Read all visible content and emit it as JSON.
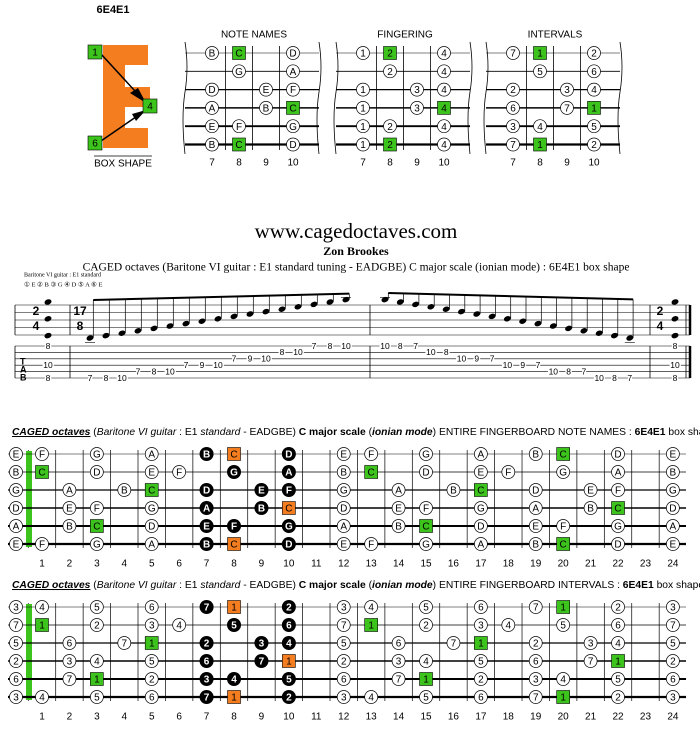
{
  "box": {
    "title": "6E4E1",
    "label": "BOX SHAPE",
    "markers": [
      1,
      4,
      6
    ]
  },
  "mini": {
    "titles": [
      "NOTE NAMES",
      "FINGERING",
      "INTERVALS"
    ],
    "frets": [
      7,
      8,
      9,
      10
    ],
    "strings": [
      {
        "frets": [
          7,
          8,
          10
        ],
        "notes": [
          "B",
          "C",
          "D"
        ],
        "fingers": [
          1,
          2,
          4
        ],
        "intervals": [
          7,
          1,
          2
        ],
        "root": 1
      },
      {
        "frets": [
          8,
          10
        ],
        "notes": [
          "G",
          "A"
        ],
        "fingers": [
          2,
          4
        ],
        "intervals": [
          5,
          6
        ],
        "root": null
      },
      {
        "frets": [
          7,
          9,
          10
        ],
        "notes": [
          "D",
          "E",
          "F"
        ],
        "fingers": [
          1,
          3,
          4
        ],
        "intervals": [
          2,
          3,
          4
        ],
        "root": null
      },
      {
        "frets": [
          7,
          9,
          10
        ],
        "notes": [
          "A",
          "B",
          "C"
        ],
        "fingers": [
          1,
          3,
          4
        ],
        "intervals": [
          6,
          7,
          1
        ],
        "root": 2
      },
      {
        "frets": [
          7,
          8,
          10
        ],
        "notes": [
          "E",
          "F",
          "G"
        ],
        "fingers": [
          1,
          2,
          4
        ],
        "intervals": [
          3,
          4,
          5
        ],
        "root": null
      },
      {
        "frets": [
          7,
          8,
          10
        ],
        "notes": [
          "B",
          "C",
          "D"
        ],
        "fingers": [
          1,
          2,
          4
        ],
        "intervals": [
          7,
          1,
          2
        ],
        "root": 1
      }
    ]
  },
  "header": {
    "site": "www.cagedoctaves.com",
    "author": "Zon Brookes",
    "subtitle": "CAGED octaves (Baritone VI guitar : E1 standard tuning - EADGBE) C major scale (ionian mode) : 6E4E1 box shape"
  },
  "sheet": {
    "instrument": "Baritone VI guitar : E1 standard",
    "tuning": "① E ② B ③ G ④ D ⑤ A ⑥ E",
    "times": [
      {
        "num": 2,
        "den": 4
      },
      {
        "num": 17,
        "den": 8
      },
      {
        "num": 2,
        "den": 4
      }
    ],
    "chord_start": {
      "strings": [
        1,
        4,
        6
      ],
      "frets": [
        8,
        10,
        8
      ]
    },
    "run": {
      "strings": [
        6,
        6,
        6,
        5,
        5,
        5,
        4,
        4,
        4,
        3,
        3,
        3,
        2,
        2,
        1,
        1,
        1,
        1,
        1,
        1,
        2,
        2,
        3,
        3,
        3,
        4,
        4,
        4,
        5,
        5,
        5,
        6,
        6,
        6
      ],
      "frets": [
        7,
        8,
        10,
        7,
        8,
        10,
        7,
        9,
        10,
        7,
        9,
        10,
        8,
        10,
        7,
        8,
        10,
        10,
        8,
        7,
        10,
        8,
        10,
        9,
        7,
        10,
        9,
        7,
        10,
        8,
        7,
        10,
        8,
        7
      ]
    },
    "chord_end": {
      "strings": [
        1,
        4,
        6
      ],
      "frets": [
        8,
        10,
        8
      ]
    }
  },
  "fretboard": {
    "frets": [
      1,
      2,
      3,
      4,
      5,
      6,
      7,
      8,
      9,
      10,
      11,
      12,
      13,
      14,
      15,
      16,
      17,
      18,
      19,
      20,
      21,
      22,
      23,
      24
    ],
    "title_notes": [
      {
        "text": "CAGED octaves",
        "style": "biu"
      },
      {
        "text": " (",
        "style": "n"
      },
      {
        "text": "Baritone VI guitar",
        "style": "i"
      },
      {
        "text": " : E1 ",
        "style": "n"
      },
      {
        "text": "standard",
        "style": "i"
      },
      {
        "text": " - EADGBE) ",
        "style": "n"
      },
      {
        "text": "C major scale",
        "style": "b"
      },
      {
        "text": " (",
        "style": "n"
      },
      {
        "text": "ionian mode",
        "style": "bi"
      },
      {
        "text": ") ENTIRE FINGERBOARD NOTE NAMES : ",
        "style": "n"
      },
      {
        "text": "6E4E1",
        "style": "b"
      },
      {
        "text": " box shape",
        "style": "n"
      }
    ],
    "title_intervals": [
      {
        "text": "CAGED octaves",
        "style": "biu"
      },
      {
        "text": " (",
        "style": "n"
      },
      {
        "text": "Baritone VI guitar",
        "style": "i"
      },
      {
        "text": " : E1 ",
        "style": "n"
      },
      {
        "text": "standard",
        "style": "i"
      },
      {
        "text": " - EADGBE) ",
        "style": "n"
      },
      {
        "text": "C major scale",
        "style": "b"
      },
      {
        "text": " (",
        "style": "n"
      },
      {
        "text": "ionian mode",
        "style": "bi"
      },
      {
        "text": ") ENTIRE FINGERBOARD INTERVALS : ",
        "style": "n"
      },
      {
        "text": "6E4E1",
        "style": "b"
      },
      {
        "text": " box shape",
        "style": "n"
      }
    ],
    "strings": [
      {
        "frets": [
          0,
          1,
          3,
          5,
          7,
          8,
          10,
          12,
          13,
          15,
          17,
          19,
          20,
          22,
          24
        ],
        "notes": [
          "E",
          "F",
          "G",
          "A",
          "B",
          "C",
          "D",
          "E",
          "F",
          "G",
          "A",
          "B",
          "C",
          "D",
          "E"
        ],
        "intervals": [
          3,
          4,
          5,
          6,
          7,
          1,
          2,
          3,
          4,
          5,
          6,
          7,
          1,
          2,
          3
        ],
        "styles": "wwwwkokwwwwwgww"
      },
      {
        "frets": [
          0,
          1,
          3,
          5,
          6,
          8,
          10,
          12,
          13,
          15,
          17,
          18,
          20,
          22,
          24
        ],
        "notes": [
          "B",
          "C",
          "D",
          "E",
          "F",
          "G",
          "A",
          "B",
          "C",
          "D",
          "E",
          "F",
          "G",
          "A",
          "B"
        ],
        "intervals": [
          7,
          1,
          2,
          3,
          4,
          5,
          6,
          7,
          1,
          2,
          3,
          4,
          5,
          6,
          7
        ],
        "styles": "wgwwwkkwgwwwwww"
      },
      {
        "frets": [
          0,
          2,
          4,
          5,
          7,
          9,
          10,
          12,
          14,
          16,
          17,
          19,
          21,
          22,
          24
        ],
        "notes": [
          "G",
          "A",
          "B",
          "C",
          "D",
          "E",
          "F",
          "G",
          "A",
          "B",
          "C",
          "D",
          "E",
          "F",
          "G"
        ],
        "intervals": [
          5,
          6,
          7,
          1,
          2,
          3,
          4,
          5,
          6,
          7,
          1,
          2,
          3,
          4,
          5
        ],
        "styles": "wwwgkkkwwwgwwww"
      },
      {
        "frets": [
          0,
          2,
          3,
          5,
          7,
          9,
          10,
          12,
          14,
          15,
          17,
          19,
          21,
          22,
          24
        ],
        "notes": [
          "D",
          "E",
          "F",
          "G",
          "A",
          "B",
          "C",
          "D",
          "E",
          "F",
          "G",
          "A",
          "B",
          "C",
          "D"
        ],
        "intervals": [
          2,
          3,
          4,
          5,
          6,
          7,
          1,
          2,
          3,
          4,
          5,
          6,
          7,
          1,
          2
        ],
        "styles": "wwwwkkowwwwwwgw"
      },
      {
        "frets": [
          0,
          2,
          3,
          5,
          7,
          8,
          10,
          12,
          14,
          15,
          17,
          19,
          20,
          22,
          24
        ],
        "notes": [
          "A",
          "B",
          "C",
          "D",
          "E",
          "F",
          "G",
          "A",
          "B",
          "C",
          "D",
          "E",
          "F",
          "G",
          "A"
        ],
        "intervals": [
          6,
          7,
          1,
          2,
          3,
          4,
          5,
          6,
          7,
          1,
          2,
          3,
          4,
          5,
          6
        ],
        "styles": "wwgwkkkwwgwwwww"
      },
      {
        "frets": [
          0,
          1,
          3,
          5,
          7,
          8,
          10,
          12,
          13,
          15,
          17,
          19,
          20,
          22,
          24
        ],
        "notes": [
          "E",
          "F",
          "G",
          "A",
          "B",
          "C",
          "D",
          "E",
          "F",
          "G",
          "A",
          "B",
          "C",
          "D",
          "E"
        ],
        "intervals": [
          3,
          4,
          5,
          6,
          7,
          1,
          2,
          3,
          4,
          5,
          6,
          7,
          1,
          2,
          3
        ],
        "styles": "wwwwkokwwwwwgww"
      }
    ]
  }
}
